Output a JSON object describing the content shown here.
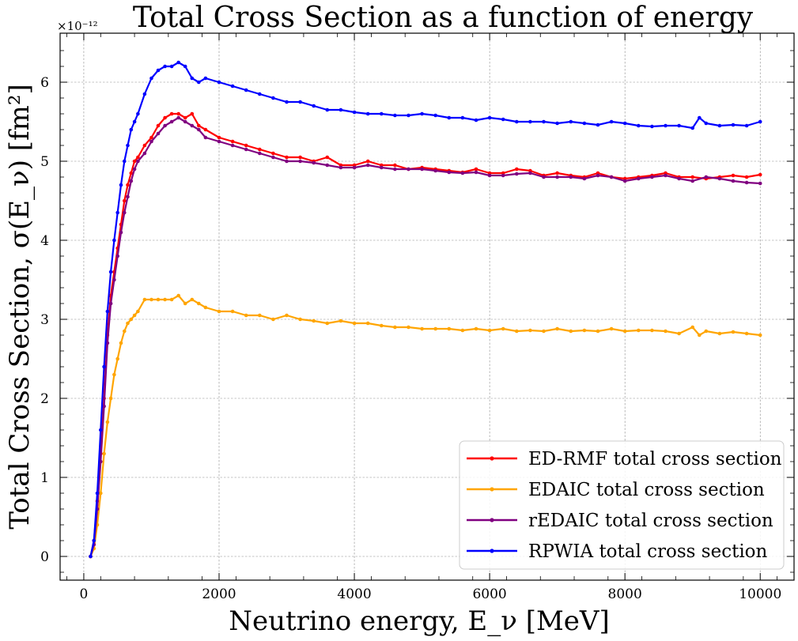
{
  "chart_data": {
    "type": "line",
    "title": "Total Cross Section as a function of energy",
    "xlabel": "Neutrino energy, E_ν [MeV]",
    "ylabel": "Total Cross Section, σ(E_ν) [fm²]",
    "y_scale_factor": "×10⁻¹²",
    "xlim": [
      -350,
      10500
    ],
    "ylim": [
      -0.3,
      6.62
    ],
    "x_ticks": [
      0,
      2000,
      4000,
      6000,
      8000,
      10000
    ],
    "y_ticks": [
      0,
      1,
      2,
      3,
      4,
      5,
      6
    ],
    "x_tick_labels": [
      "0",
      "2000",
      "4000",
      "6000",
      "8000",
      "10000"
    ],
    "y_tick_labels": [
      "0",
      "1",
      "2",
      "3",
      "4",
      "5",
      "6"
    ],
    "grid": true,
    "legend_position": "lower-right",
    "series": [
      {
        "name": "ED-RMF total cross section",
        "color": "#ff0000",
        "x": [
          100,
          150,
          200,
          250,
          300,
          350,
          400,
          450,
          500,
          550,
          600,
          650,
          700,
          750,
          800,
          900,
          1000,
          1100,
          1200,
          1300,
          1400,
          1500,
          1600,
          1700,
          1800,
          2000,
          2200,
          2400,
          2600,
          2800,
          3000,
          3200,
          3400,
          3600,
          3800,
          4000,
          4200,
          4400,
          4600,
          4800,
          5000,
          5200,
          5400,
          5600,
          5800,
          6000,
          6200,
          6400,
          6600,
          6800,
          7000,
          7200,
          7400,
          7600,
          7800,
          8000,
          8200,
          8400,
          8600,
          8800,
          9000,
          9200,
          9400,
          9600,
          9800,
          10000
        ],
        "y": [
          0.0,
          0.2,
          0.7,
          1.3,
          2.0,
          2.8,
          3.3,
          3.6,
          3.9,
          4.2,
          4.5,
          4.7,
          4.85,
          5.0,
          5.05,
          5.2,
          5.3,
          5.45,
          5.55,
          5.6,
          5.6,
          5.55,
          5.6,
          5.45,
          5.4,
          5.3,
          5.25,
          5.2,
          5.15,
          5.1,
          5.05,
          5.05,
          5.0,
          5.05,
          4.95,
          4.95,
          5.0,
          4.95,
          4.95,
          4.9,
          4.92,
          4.9,
          4.88,
          4.86,
          4.9,
          4.85,
          4.85,
          4.9,
          4.88,
          4.82,
          4.85,
          4.82,
          4.8,
          4.85,
          4.8,
          4.78,
          4.8,
          4.82,
          4.85,
          4.8,
          4.8,
          4.78,
          4.8,
          4.82,
          4.8,
          4.83
        ]
      },
      {
        "name": "EDAIC total cross section",
        "color": "#ffa500",
        "x": [
          100,
          150,
          200,
          250,
          300,
          350,
          400,
          450,
          500,
          550,
          600,
          650,
          700,
          750,
          800,
          900,
          1000,
          1100,
          1200,
          1300,
          1400,
          1500,
          1600,
          1700,
          1800,
          2000,
          2200,
          2400,
          2600,
          2800,
          3000,
          3200,
          3400,
          3600,
          3800,
          4000,
          4200,
          4400,
          4600,
          4800,
          5000,
          5200,
          5400,
          5600,
          5800,
          6000,
          6200,
          6400,
          6600,
          6800,
          7000,
          7200,
          7400,
          7600,
          7800,
          8000,
          8200,
          8400,
          8600,
          8800,
          9000,
          9100,
          9200,
          9400,
          9600,
          9800,
          10000
        ],
        "y": [
          0.0,
          0.1,
          0.4,
          0.8,
          1.3,
          1.7,
          2.0,
          2.3,
          2.5,
          2.7,
          2.85,
          2.95,
          3.0,
          3.05,
          3.1,
          3.25,
          3.25,
          3.25,
          3.25,
          3.25,
          3.3,
          3.2,
          3.25,
          3.2,
          3.15,
          3.1,
          3.1,
          3.05,
          3.05,
          3.0,
          3.05,
          3.0,
          2.98,
          2.95,
          2.98,
          2.95,
          2.95,
          2.92,
          2.9,
          2.9,
          2.88,
          2.88,
          2.88,
          2.86,
          2.88,
          2.86,
          2.88,
          2.85,
          2.86,
          2.85,
          2.88,
          2.85,
          2.86,
          2.85,
          2.88,
          2.85,
          2.86,
          2.86,
          2.85,
          2.82,
          2.9,
          2.8,
          2.85,
          2.82,
          2.84,
          2.82,
          2.8
        ]
      },
      {
        "name": "rEDAIC total cross section",
        "color": "#800080",
        "x": [
          100,
          150,
          200,
          250,
          300,
          350,
          400,
          450,
          500,
          550,
          600,
          650,
          700,
          750,
          800,
          900,
          1000,
          1100,
          1200,
          1300,
          1400,
          1500,
          1600,
          1700,
          1800,
          2000,
          2200,
          2400,
          2600,
          2800,
          3000,
          3200,
          3400,
          3600,
          3800,
          4000,
          4200,
          4400,
          4600,
          4800,
          5000,
          5200,
          5400,
          5600,
          5800,
          6000,
          6200,
          6400,
          6600,
          6800,
          7000,
          7200,
          7400,
          7600,
          7800,
          8000,
          8200,
          8400,
          8600,
          8800,
          9000,
          9200,
          9400,
          9600,
          9800,
          10000
        ],
        "y": [
          0.0,
          0.15,
          0.6,
          1.2,
          1.9,
          2.7,
          3.2,
          3.5,
          3.8,
          4.1,
          4.35,
          4.55,
          4.75,
          4.9,
          5.0,
          5.1,
          5.25,
          5.35,
          5.45,
          5.5,
          5.55,
          5.5,
          5.45,
          5.4,
          5.3,
          5.25,
          5.2,
          5.15,
          5.1,
          5.05,
          5.0,
          5.0,
          4.98,
          4.95,
          4.92,
          4.92,
          4.95,
          4.92,
          4.9,
          4.9,
          4.9,
          4.88,
          4.86,
          4.85,
          4.86,
          4.82,
          4.82,
          4.84,
          4.85,
          4.8,
          4.8,
          4.8,
          4.78,
          4.82,
          4.8,
          4.75,
          4.78,
          4.8,
          4.82,
          4.78,
          4.75,
          4.8,
          4.78,
          4.75,
          4.73,
          4.72
        ]
      },
      {
        "name": "RPWIA total cross section",
        "color": "#0000ff",
        "x": [
          100,
          150,
          200,
          250,
          300,
          350,
          400,
          450,
          500,
          550,
          600,
          650,
          700,
          750,
          800,
          900,
          1000,
          1100,
          1200,
          1300,
          1400,
          1500,
          1600,
          1700,
          1800,
          2000,
          2200,
          2400,
          2600,
          2800,
          3000,
          3200,
          3400,
          3600,
          3800,
          4000,
          4200,
          4400,
          4600,
          4800,
          5000,
          5200,
          5400,
          5600,
          5800,
          6000,
          6200,
          6400,
          6600,
          6800,
          7000,
          7200,
          7400,
          7600,
          7800,
          8000,
          8200,
          8400,
          8600,
          8800,
          9000,
          9100,
          9200,
          9400,
          9600,
          9800,
          10000
        ],
        "y": [
          0.0,
          0.2,
          0.8,
          1.6,
          2.4,
          3.1,
          3.6,
          4.0,
          4.35,
          4.7,
          5.0,
          5.2,
          5.4,
          5.5,
          5.6,
          5.85,
          6.05,
          6.15,
          6.2,
          6.2,
          6.25,
          6.2,
          6.05,
          6.0,
          6.05,
          6.0,
          5.95,
          5.9,
          5.85,
          5.8,
          5.75,
          5.75,
          5.7,
          5.65,
          5.65,
          5.62,
          5.6,
          5.6,
          5.58,
          5.58,
          5.6,
          5.58,
          5.55,
          5.55,
          5.52,
          5.55,
          5.53,
          5.5,
          5.5,
          5.5,
          5.48,
          5.5,
          5.48,
          5.46,
          5.5,
          5.48,
          5.45,
          5.44,
          5.45,
          5.45,
          5.42,
          5.55,
          5.48,
          5.45,
          5.46,
          5.45,
          5.5
        ]
      }
    ]
  }
}
